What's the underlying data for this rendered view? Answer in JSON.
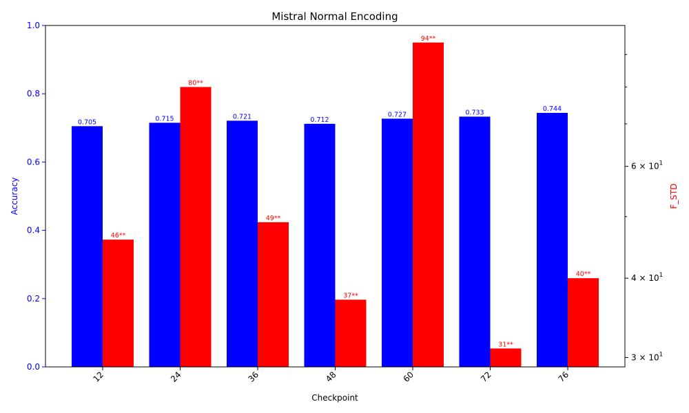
{
  "chart_data": {
    "type": "bar",
    "title": "Mistral Normal Encoding",
    "xlabel": "Checkpoint",
    "ylabel_left": "Accuracy",
    "ylabel_right": "F_STD",
    "categories": [
      "12",
      "24",
      "36",
      "48",
      "60",
      "72",
      "76"
    ],
    "series": [
      {
        "axis": "left",
        "color": "#0000ff",
        "values": [
          0.705,
          0.715,
          0.721,
          0.712,
          0.727,
          0.733,
          0.744
        ],
        "labels": [
          "0.705",
          "0.715",
          "0.721",
          "0.712",
          "0.727",
          "0.733",
          "0.744"
        ]
      },
      {
        "axis": "right",
        "color": "#ff0000",
        "values": [
          46,
          80,
          49,
          37,
          94,
          31,
          40
        ],
        "labels": [
          "46**",
          "80**",
          "49**",
          "37**",
          "94**",
          "31**",
          "40**"
        ]
      }
    ],
    "ylim_left": [
      0,
      1.0
    ],
    "yticks_left": [
      "0.0",
      "0.2",
      "0.4",
      "0.6",
      "0.8",
      "1.0"
    ],
    "ylim_right": [
      29,
      100
    ],
    "yscale_right": "log",
    "yticks_right_major": [
      {
        "value": 30,
        "mantissa": "3",
        "base": "10",
        "exp": "1"
      },
      {
        "value": 40,
        "mantissa": "4",
        "base": "10",
        "exp": "1"
      },
      {
        "value": 60,
        "mantissa": "6",
        "base": "10",
        "exp": "1"
      }
    ],
    "yticks_right_minor": [
      50,
      70,
      80,
      90
    ],
    "left_axis_color": "#0000ff",
    "right_axis_color": "#ff0000",
    "grid": false,
    "legend": "none"
  }
}
